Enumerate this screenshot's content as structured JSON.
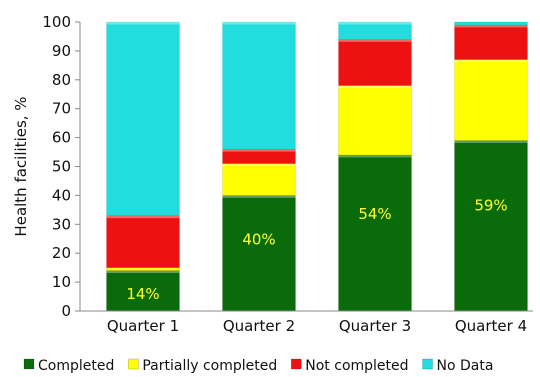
{
  "chart_data": {
    "type": "bar",
    "stacked": true,
    "title": "",
    "xlabel": "",
    "ylabel": "Health facilities, %",
    "ylim": [
      0,
      100
    ],
    "yticks": [
      0,
      10,
      20,
      30,
      40,
      50,
      60,
      70,
      80,
      90,
      100
    ],
    "grid": false,
    "legend_position": "bottom",
    "categories": [
      "Quarter 1",
      "Quarter 2",
      "Quarter 3",
      "Quarter 4"
    ],
    "series": [
      {
        "name": "Completed",
        "color": "#0a6b0a",
        "values": [
          14,
          40,
          54,
          59
        ]
      },
      {
        "name": "Partially completed",
        "color": "#ffff00",
        "values": [
          1,
          11,
          24,
          28
        ]
      },
      {
        "name": "Not completed",
        "color": "#ee1111",
        "values": [
          18,
          5,
          16,
          12
        ]
      },
      {
        "name": "No Data",
        "color": "#22dddd",
        "values": [
          67,
          44,
          6,
          1
        ]
      }
    ],
    "data_labels": [
      "14%",
      "40%",
      "54%",
      "59%"
    ]
  }
}
